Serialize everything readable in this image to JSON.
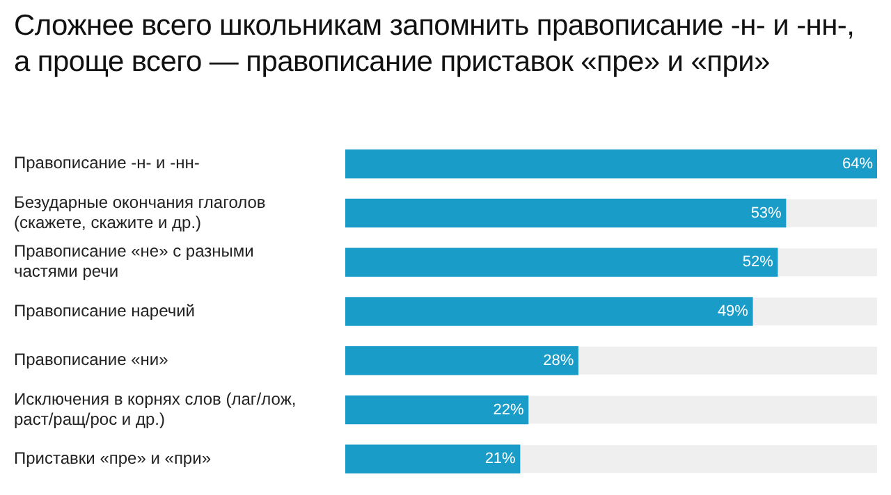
{
  "chart_data": {
    "type": "bar",
    "orientation": "horizontal",
    "title": "Сложнее всего школьникам запомнить правописание -н- и -нн-, а проще всего — правописание приставок «пре» и «при»",
    "categories": [
      "Правописание -н- и -нн-",
      "Безударные окончания глаголов (скажете, скажите и др.)",
      "Правописание «не» с разными частями речи",
      "Правописание наречий",
      "Правописание «ни»",
      "Исключения в корнях слов (лаг/лож, раст/ращ/рос и др.)",
      "Приставки «пре» и «при»"
    ],
    "values": [
      64,
      53,
      52,
      49,
      28,
      22,
      21
    ],
    "value_labels": [
      "64%",
      "53%",
      "52%",
      "49%",
      "28%",
      "22%",
      "21%"
    ],
    "color": "#1a9cc8",
    "tick_labels": "y",
    "grid": false,
    "legend": false
  }
}
